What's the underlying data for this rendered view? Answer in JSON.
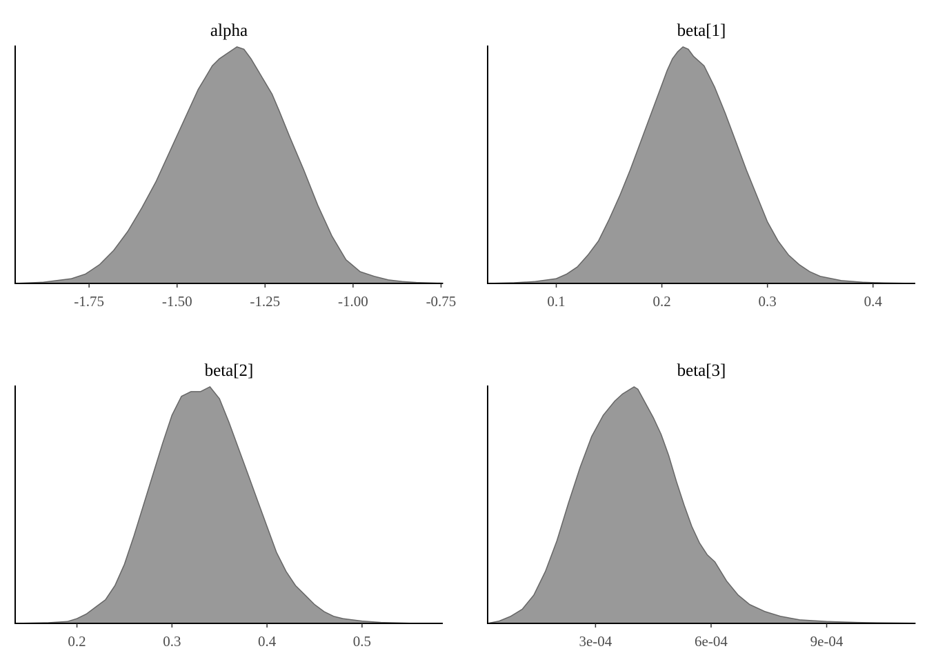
{
  "colors": {
    "fill": "#999999",
    "outline": "#666666",
    "axis": "#000000",
    "tick_text": "#4d4d4d"
  },
  "chart_data": [
    {
      "type": "area",
      "title": "alpha",
      "xlim": [
        -1.96,
        -0.745
      ],
      "ylim": [
        0,
        1
      ],
      "ticks": [
        -1.75,
        -1.5,
        -1.25,
        -1.0,
        -0.75
      ],
      "tick_labels": [
        "-1.75",
        "-1.50",
        "-1.25",
        "-1.00",
        "-0.75"
      ],
      "x": [
        -1.96,
        -1.88,
        -1.8,
        -1.76,
        -1.72,
        -1.68,
        -1.64,
        -1.6,
        -1.56,
        -1.52,
        -1.48,
        -1.44,
        -1.42,
        -1.4,
        -1.38,
        -1.36,
        -1.34,
        -1.33,
        -1.31,
        -1.29,
        -1.27,
        -1.25,
        -1.23,
        -1.21,
        -1.18,
        -1.14,
        -1.1,
        -1.06,
        -1.02,
        -0.98,
        -0.94,
        -0.9,
        -0.86,
        -0.82,
        -0.78,
        -0.745
      ],
      "y": [
        0,
        0.005,
        0.02,
        0.04,
        0.08,
        0.14,
        0.22,
        0.32,
        0.43,
        0.56,
        0.69,
        0.82,
        0.87,
        0.92,
        0.95,
        0.97,
        0.99,
        1.0,
        0.99,
        0.95,
        0.9,
        0.85,
        0.8,
        0.73,
        0.62,
        0.48,
        0.33,
        0.2,
        0.1,
        0.05,
        0.03,
        0.015,
        0.008,
        0.004,
        0.002,
        0.001
      ]
    },
    {
      "type": "area",
      "title": "beta[1]",
      "xlim": [
        0.035,
        0.44
      ],
      "ylim": [
        0,
        1
      ],
      "ticks": [
        0.1,
        0.2,
        0.3,
        0.4
      ],
      "tick_labels": [
        "0.1",
        "0.2",
        "0.3",
        "0.4"
      ],
      "x": [
        0.035,
        0.06,
        0.08,
        0.1,
        0.11,
        0.12,
        0.13,
        0.14,
        0.15,
        0.16,
        0.17,
        0.18,
        0.19,
        0.2,
        0.205,
        0.21,
        0.215,
        0.22,
        0.225,
        0.23,
        0.24,
        0.25,
        0.26,
        0.27,
        0.28,
        0.29,
        0.3,
        0.31,
        0.32,
        0.33,
        0.34,
        0.35,
        0.37,
        0.39,
        0.41,
        0.44
      ],
      "y": [
        0,
        0.003,
        0.008,
        0.02,
        0.04,
        0.07,
        0.12,
        0.18,
        0.27,
        0.37,
        0.48,
        0.6,
        0.72,
        0.84,
        0.9,
        0.95,
        0.98,
        1.0,
        0.99,
        0.96,
        0.92,
        0.83,
        0.72,
        0.6,
        0.48,
        0.37,
        0.26,
        0.18,
        0.12,
        0.08,
        0.05,
        0.03,
        0.012,
        0.005,
        0.002,
        0
      ]
    },
    {
      "type": "area",
      "title": "beta[2]",
      "xlim": [
        0.135,
        0.585
      ],
      "ylim": [
        0,
        1
      ],
      "ticks": [
        0.2,
        0.3,
        0.4,
        0.5
      ],
      "tick_labels": [
        "0.2",
        "0.3",
        "0.4",
        "0.5"
      ],
      "x": [
        0.135,
        0.17,
        0.19,
        0.2,
        0.21,
        0.22,
        0.23,
        0.24,
        0.25,
        0.26,
        0.27,
        0.28,
        0.29,
        0.3,
        0.31,
        0.32,
        0.33,
        0.34,
        0.35,
        0.36,
        0.37,
        0.38,
        0.39,
        0.4,
        0.41,
        0.42,
        0.43,
        0.44,
        0.45,
        0.46,
        0.47,
        0.48,
        0.5,
        0.52,
        0.55,
        0.585
      ],
      "y": [
        0,
        0.003,
        0.008,
        0.02,
        0.04,
        0.07,
        0.1,
        0.16,
        0.25,
        0.37,
        0.5,
        0.63,
        0.76,
        0.88,
        0.96,
        0.98,
        0.98,
        1.0,
        0.95,
        0.85,
        0.74,
        0.63,
        0.52,
        0.41,
        0.3,
        0.22,
        0.16,
        0.12,
        0.08,
        0.05,
        0.03,
        0.02,
        0.01,
        0.004,
        0.001,
        0
      ]
    },
    {
      "type": "area",
      "title": "beta[3]",
      "xlim": [
        2e-05,
        0.00113
      ],
      "ylim": [
        0,
        1
      ],
      "ticks": [
        0.0003,
        0.0006,
        0.0009
      ],
      "tick_labels": [
        "3e-04",
        "6e-04",
        "9e-04"
      ],
      "x": [
        2e-05,
        5e-05,
        8e-05,
        0.00011,
        0.00014,
        0.00017,
        0.0002,
        0.00023,
        0.00026,
        0.00029,
        0.00032,
        0.00035,
        0.00037,
        0.00039,
        0.0004,
        0.00041,
        0.00043,
        0.00045,
        0.00047,
        0.00049,
        0.00051,
        0.00053,
        0.00055,
        0.00057,
        0.00059,
        0.00061,
        0.00064,
        0.00067,
        0.0007,
        0.00074,
        0.00078,
        0.00083,
        0.0009,
        0.00098,
        0.00105,
        0.00113
      ],
      "y": [
        0,
        0.01,
        0.03,
        0.06,
        0.12,
        0.22,
        0.35,
        0.51,
        0.66,
        0.79,
        0.88,
        0.94,
        0.97,
        0.99,
        1.0,
        0.99,
        0.93,
        0.87,
        0.8,
        0.71,
        0.6,
        0.5,
        0.41,
        0.34,
        0.29,
        0.26,
        0.18,
        0.12,
        0.08,
        0.05,
        0.03,
        0.015,
        0.008,
        0.004,
        0.002,
        0.001
      ]
    }
  ]
}
